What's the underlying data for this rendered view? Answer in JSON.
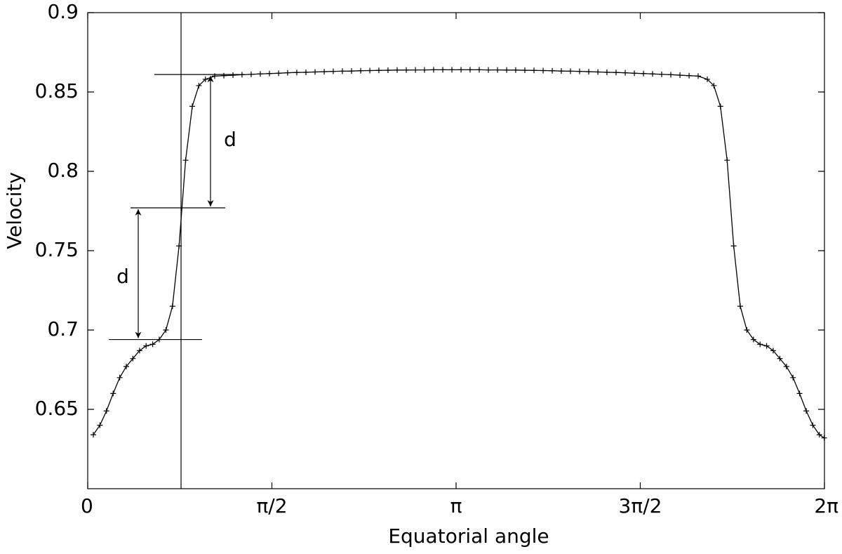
{
  "chart_data": {
    "type": "line",
    "xlabel": "Equatorial angle",
    "ylabel": "Velocity",
    "color": "#000000",
    "marker": "+",
    "xlim": [
      0,
      6.2832
    ],
    "ylim": [
      0.6,
      0.9
    ],
    "xticks": [
      0,
      {
        "value": 1.5708,
        "label": "π/2"
      },
      {
        "value": 3.1416,
        "label": "π"
      },
      {
        "value": 4.7124,
        "label": "3π/2"
      },
      {
        "value": 6.2832,
        "label": "2π"
      }
    ],
    "yticks": [
      0.65,
      0.7,
      0.75,
      0.8,
      0.85,
      0.9
    ],
    "x": [
      0.048,
      0.104,
      0.16,
      0.217,
      0.273,
      0.329,
      0.385,
      0.442,
      0.498,
      0.554,
      0.61,
      0.667,
      0.723,
      0.779,
      0.835,
      0.892,
      0.948,
      1.004,
      1.083,
      1.161,
      1.239,
      1.316,
      1.394,
      1.472,
      1.55,
      1.628,
      1.705,
      1.783,
      1.861,
      1.939,
      2.017,
      2.094,
      2.172,
      2.25,
      2.328,
      2.406,
      2.483,
      2.561,
      2.639,
      2.717,
      2.795,
      2.872,
      2.95,
      3.028,
      3.106,
      3.184,
      3.261,
      3.339,
      3.417,
      3.495,
      3.573,
      3.65,
      3.728,
      3.806,
      3.884,
      3.962,
      4.039,
      4.117,
      4.195,
      4.273,
      4.351,
      4.428,
      4.506,
      4.584,
      4.662,
      4.74,
      4.817,
      4.895,
      4.973,
      5.051,
      5.129,
      5.206,
      5.284,
      5.34,
      5.396,
      5.453,
      5.509,
      5.565,
      5.621,
      5.678,
      5.734,
      5.79,
      5.846,
      5.903,
      5.959,
      6.015,
      6.071,
      6.128,
      6.184,
      6.24,
      6.281
    ],
    "values": [
      0.634,
      0.64,
      0.649,
      0.66,
      0.67,
      0.677,
      0.682,
      0.687,
      0.69,
      0.691,
      0.694,
      0.7,
      0.715,
      0.753,
      0.807,
      0.841,
      0.854,
      0.858,
      0.86,
      0.8603,
      0.8606,
      0.8609,
      0.8611,
      0.8614,
      0.8616,
      0.8618,
      0.8621,
      0.8623,
      0.8624,
      0.8626,
      0.8628,
      0.863,
      0.8631,
      0.8632,
      0.8634,
      0.8635,
      0.8636,
      0.8637,
      0.8638,
      0.8638,
      0.8639,
      0.8639,
      0.864,
      0.864,
      0.864,
      0.864,
      0.864,
      0.864,
      0.8639,
      0.8639,
      0.8638,
      0.8638,
      0.8637,
      0.8636,
      0.8635,
      0.8634,
      0.8632,
      0.8631,
      0.863,
      0.8628,
      0.8626,
      0.8624,
      0.8623,
      0.8621,
      0.8618,
      0.8616,
      0.8614,
      0.8611,
      0.8609,
      0.8606,
      0.8603,
      0.86,
      0.858,
      0.854,
      0.841,
      0.807,
      0.753,
      0.715,
      0.7,
      0.694,
      0.691,
      0.69,
      0.687,
      0.682,
      0.677,
      0.67,
      0.66,
      0.649,
      0.64,
      0.634,
      0.632
    ],
    "vertical_line": 0.796,
    "horizontal_lines": [
      {
        "y": 0.861,
        "xrange": [
          0.568,
          1.334
        ]
      },
      {
        "y": 0.777,
        "xrange": [
          0.365,
          1.173
        ]
      },
      {
        "y": 0.694,
        "xrange": [
          0.18,
          0.975
        ]
      }
    ],
    "annotations": [
      "d",
      "d"
    ]
  }
}
